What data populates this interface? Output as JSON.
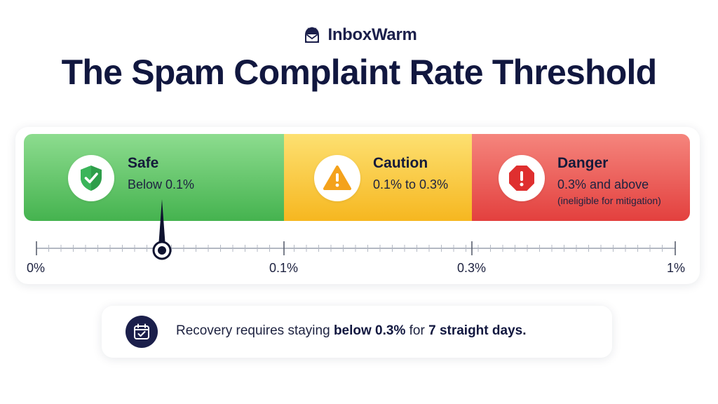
{
  "brand": {
    "name": "InboxWarm",
    "logo_icon": "masked-envelope-logo-icon",
    "color": "#1b1f4b"
  },
  "title": "The Spam Complaint Rate Threshold",
  "zones": [
    {
      "name": "Safe",
      "range": "Below 0.1%",
      "note": "",
      "icon": "shield-check-icon",
      "color": "#45b34f"
    },
    {
      "name": "Caution",
      "range": "0.1% to 0.3%",
      "note": "",
      "icon": "warning-triangle-icon",
      "color": "#f6b720"
    },
    {
      "name": "Danger",
      "range": "0.3% and above",
      "note": "(ineligible for mitigation)",
      "icon": "stop-octagon-icon",
      "color": "#e3403e"
    }
  ],
  "scale": {
    "labels": [
      "0%",
      "0.1%",
      "0.3%",
      "1%"
    ],
    "marker_value": "0.05%"
  },
  "note": {
    "icon": "calendar-check-icon",
    "prefix": "Recovery requires staying ",
    "bold1": "below 0.3%",
    "middle": " for ",
    "bold2": "7 straight days."
  }
}
